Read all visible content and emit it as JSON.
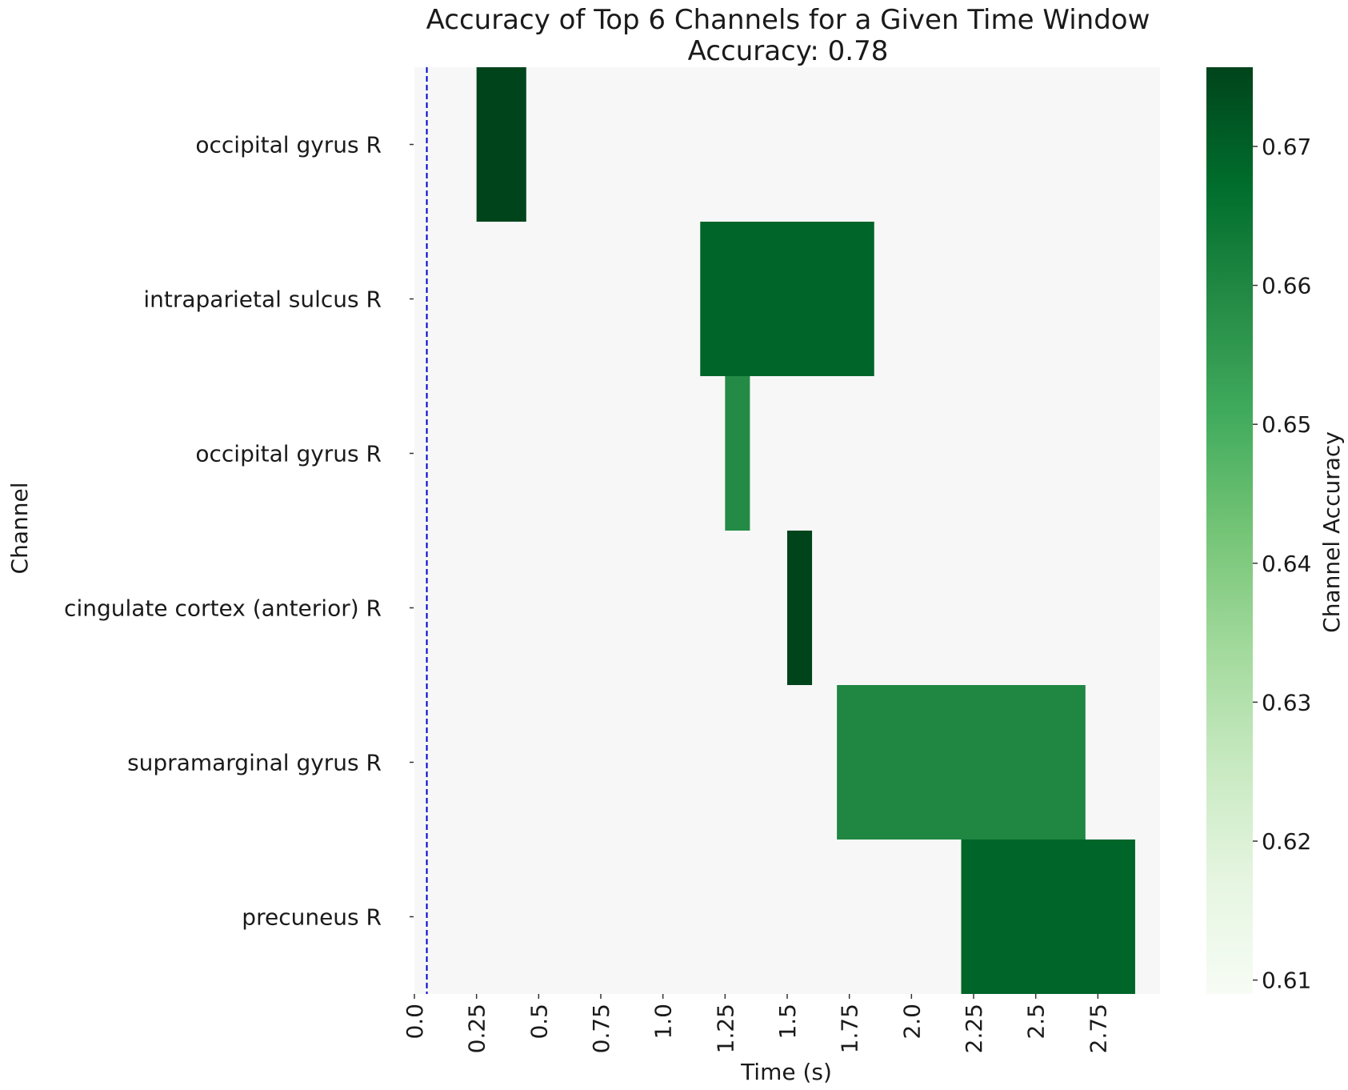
{
  "chart_data": {
    "type": "heatmap",
    "title": "Accuracy of Top 6 Channels for a Given Time Window",
    "subtitle": "Accuracy: 0.78",
    "xlabel": "Time (s)",
    "ylabel": "Channel",
    "colorbar_label": "Channel Accuracy",
    "x_range": [
      0,
      3.0
    ],
    "x_ticks": [
      "0.0",
      "0.25",
      "0.5",
      "0.75",
      "1.0",
      "1.25",
      "1.5",
      "1.75",
      "2.0",
      "2.25",
      "2.5",
      "2.75"
    ],
    "rows": [
      "occipital gyrus R",
      "intraparietal sulcus R",
      "occipital gyrus R",
      "cingulate cortex (anterior) R",
      "supramarginal gyrus R",
      "precuneus R"
    ],
    "cells": [
      {
        "row": 0,
        "x_start": 0.25,
        "x_end": 0.45,
        "value": 0.676
      },
      {
        "row": 1,
        "x_start": 1.15,
        "x_end": 1.85,
        "value": 0.669
      },
      {
        "row": 2,
        "x_start": 1.25,
        "x_end": 1.35,
        "value": 0.659
      },
      {
        "row": 3,
        "x_start": 1.5,
        "x_end": 1.6,
        "value": 0.676
      },
      {
        "row": 4,
        "x_start": 1.7,
        "x_end": 2.7,
        "value": 0.66
      },
      {
        "row": 5,
        "x_start": 2.2,
        "x_end": 2.9,
        "value": 0.669
      }
    ],
    "background_value": 0.61,
    "vline": {
      "x": 0.05,
      "color": "#0000cc",
      "style": "dashed"
    },
    "colorbar": {
      "vmin": 0.609,
      "vmax": 0.6757,
      "ticks": [
        "0.61",
        "0.62",
        "0.63",
        "0.64",
        "0.65",
        "0.66",
        "0.67"
      ],
      "colormap": "Greens",
      "colors": [
        "#f7fcf5",
        "#e5f5e0",
        "#c7e9c0",
        "#a1d99b",
        "#74c476",
        "#41ab5d",
        "#238b45",
        "#006d2c",
        "#00441b"
      ]
    },
    "grid": false
  }
}
